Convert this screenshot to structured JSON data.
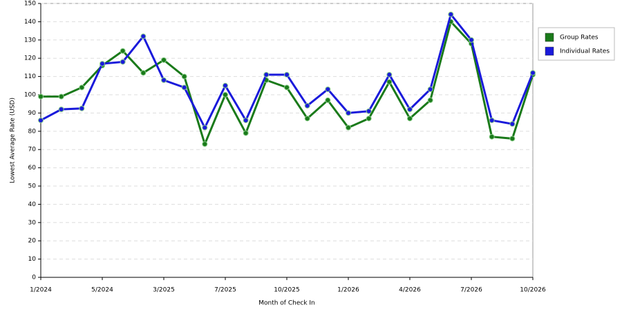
{
  "chart_data": {
    "type": "line",
    "x_label": "Month of Check In",
    "y_label": "Lowest Average Rate (USD)",
    "categories": [
      "1/2024",
      null,
      null,
      "5/2024",
      null,
      null,
      "3/2025",
      null,
      null,
      "7/2025",
      null,
      null,
      "10/2025",
      null,
      null,
      "1/2026",
      null,
      null,
      "4/2026",
      null,
      null,
      "7/2026",
      null,
      null,
      "10/2026"
    ],
    "series": [
      {
        "name": "Group Rates",
        "color": "#1a7a1a",
        "values": [
          99,
          99,
          104,
          116,
          124,
          112,
          119,
          110,
          73,
          100,
          79,
          108,
          104,
          87,
          97,
          82,
          87,
          107,
          87,
          97,
          140,
          128,
          77,
          76,
          111
        ]
      },
      {
        "name": "Individual Rates",
        "color": "#1a1adb",
        "values": [
          86,
          92,
          92.5,
          117,
          118,
          132,
          108,
          104,
          82,
          105,
          86,
          111,
          111,
          94,
          103,
          90,
          91,
          111,
          92,
          103,
          144,
          130,
          86,
          84,
          112
        ]
      }
    ],
    "ylim": [
      0,
      150
    ],
    "yticks": [
      0,
      10,
      20,
      30,
      40,
      50,
      60,
      70,
      80,
      90,
      100,
      110,
      120,
      130,
      140,
      150
    ],
    "grid": true,
    "legend": "right"
  }
}
